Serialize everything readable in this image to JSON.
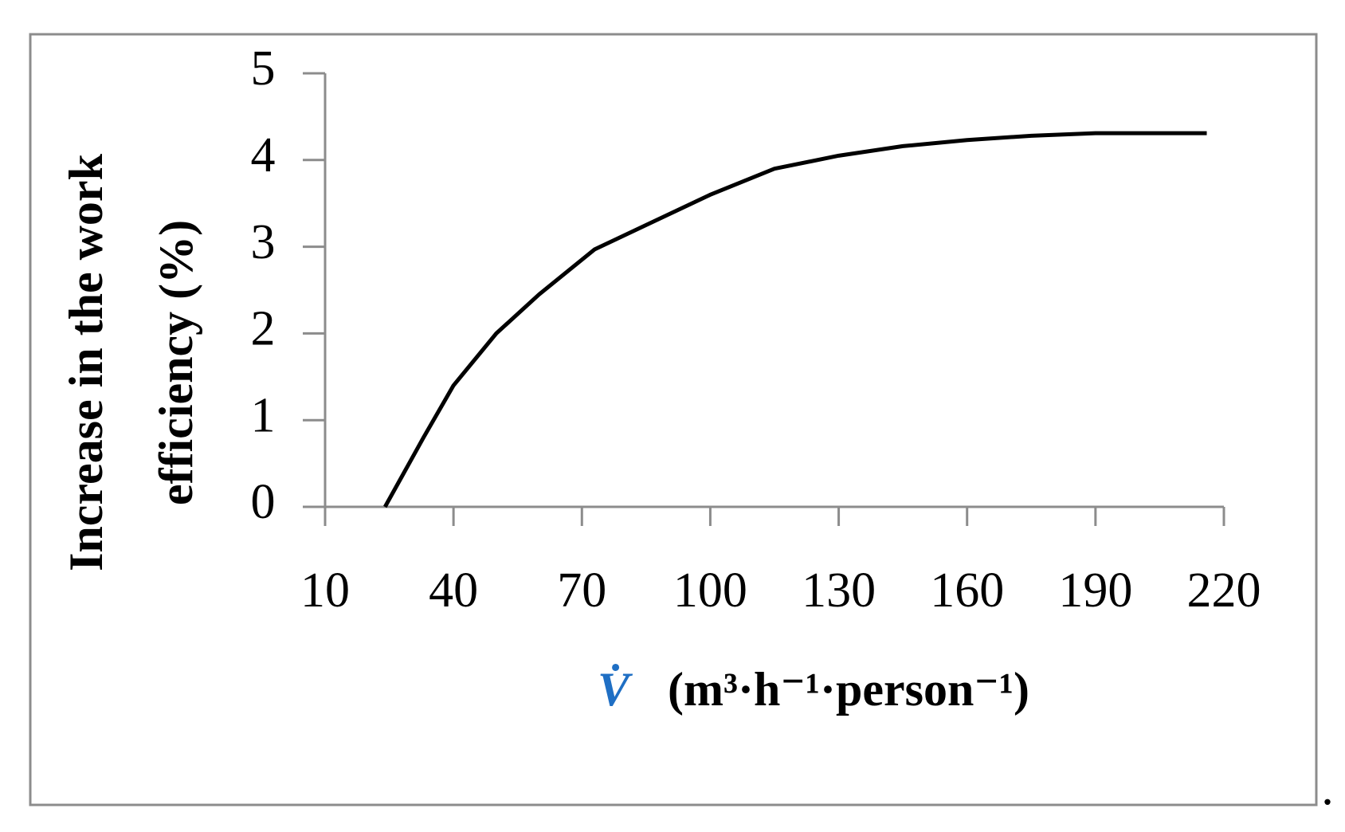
{
  "chart_data": {
    "type": "line",
    "y_label": [
      "Increase in the work",
      "efficiency (%)"
    ],
    "x_symbol": "V̇",
    "x_label": "(m³·h⁻¹·person⁻¹)",
    "trailing_text": ".",
    "x": [
      24,
      33,
      40,
      50,
      60,
      73,
      85,
      100,
      115,
      130,
      145,
      160,
      175,
      190,
      205,
      216
    ],
    "series": [
      {
        "color": "#000000",
        "values": [
          0,
          0.8,
          1.4,
          2.0,
          2.45,
          2.97,
          3.25,
          3.6,
          3.9,
          4.05,
          4.16,
          4.23,
          4.28,
          4.31,
          4.31,
          4.31
        ]
      }
    ],
    "xlim": [
      10,
      220
    ],
    "xticks": [
      10,
      40,
      70,
      100,
      130,
      160,
      190,
      220
    ],
    "ylim": [
      0,
      5
    ],
    "yticks": [
      0,
      1,
      2,
      3,
      4,
      5
    ]
  }
}
